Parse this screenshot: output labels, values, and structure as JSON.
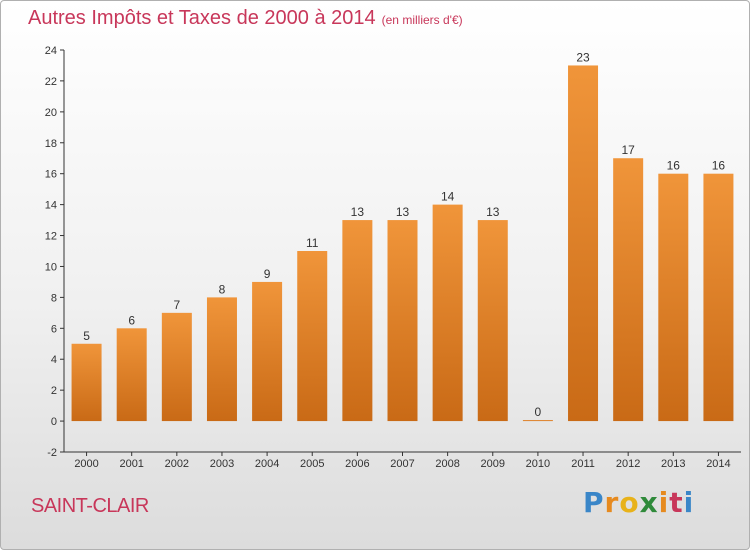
{
  "title": "Autres Impôts et Taxes de 2000 à 2014",
  "subtitle": "(en milliers d'€)",
  "city": "SAINT-CLAIR",
  "logo": {
    "letters": [
      "P",
      "r",
      "o",
      "x",
      "i",
      "t",
      "i"
    ],
    "colors": [
      "#3a86c8",
      "#e68a1f",
      "#e8b21a",
      "#2f8a3a",
      "#e68a1f",
      "#c8375a",
      "#3a86c8"
    ]
  },
  "colors": {
    "bar": "#f0953a",
    "bar_dark": "#c96a16",
    "title": "#c8375a",
    "axis": "#333333",
    "grid": "#cfcfcf"
  },
  "chart_data": {
    "type": "bar",
    "title": "Autres Impôts et Taxes de 2000 à 2014",
    "subtitle": "(en milliers d'€)",
    "xlabel": "",
    "ylabel": "",
    "categories": [
      "2000",
      "2001",
      "2002",
      "2003",
      "2004",
      "2005",
      "2006",
      "2007",
      "2008",
      "2009",
      "2010",
      "2011",
      "2012",
      "2013",
      "2014"
    ],
    "values": [
      5,
      6,
      7,
      8,
      9,
      11,
      13,
      13,
      14,
      13,
      0,
      23,
      17,
      16,
      16
    ],
    "data_labels": [
      "5",
      "6",
      "7",
      "8",
      "9",
      "11",
      "13",
      "13",
      "14",
      "13",
      "0",
      "23",
      "17",
      "16",
      "16"
    ],
    "ylim": [
      -2,
      24
    ],
    "yticks": [
      -2,
      0,
      2,
      4,
      6,
      8,
      10,
      12,
      14,
      16,
      18,
      20,
      22,
      24
    ],
    "grid": false,
    "legend": "none"
  }
}
